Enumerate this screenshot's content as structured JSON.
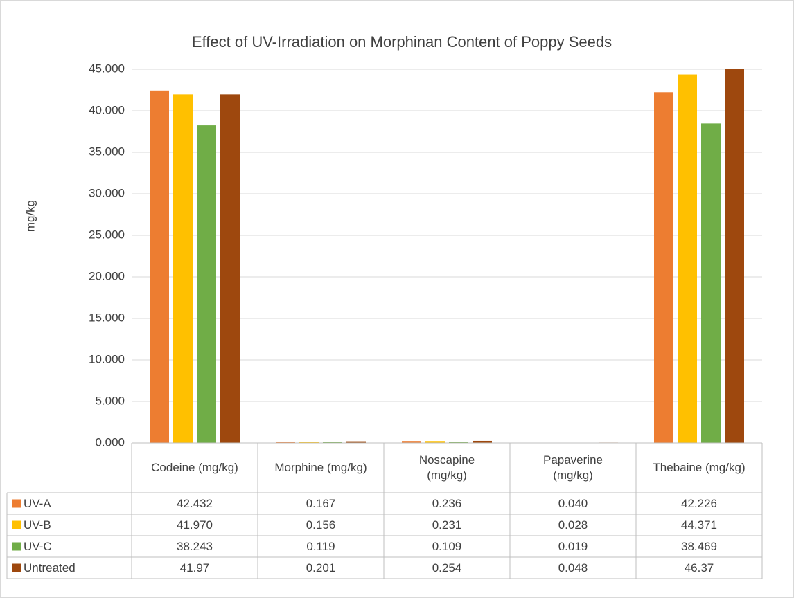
{
  "chart_data": {
    "type": "bar",
    "title": "Effect of UV-Irradiation on Morphinan Content of Poppy Seeds",
    "y_label": "mg/kg",
    "categories": [
      "Codeine (mg/kg)",
      "Morphine (mg/kg)",
      "Noscapine (mg/kg)",
      "Papaverine (mg/kg)",
      "Thebaine (mg/kg)"
    ],
    "series": [
      {
        "name": "UV-A",
        "color": "#ED7D31",
        "values": [
          42.432,
          0.167,
          0.236,
          0.04,
          42.226
        ],
        "value_labels": [
          "42.432",
          "0.167",
          "0.236",
          "0.040",
          "42.226"
        ]
      },
      {
        "name": "UV-B",
        "color": "#FFC000",
        "values": [
          41.97,
          0.156,
          0.231,
          0.028,
          44.371
        ],
        "value_labels": [
          "41.970",
          "0.156",
          "0.231",
          "0.028",
          "44.371"
        ]
      },
      {
        "name": "UV-C",
        "color": "#70AD47",
        "values": [
          38.243,
          0.119,
          0.109,
          0.019,
          38.469
        ],
        "value_labels": [
          "38.243",
          "0.119",
          "0.109",
          "0.019",
          "38.469"
        ]
      },
      {
        "name": "Untreated",
        "color": "#9E480E",
        "values": [
          41.97,
          0.201,
          0.254,
          0.048,
          46.37
        ],
        "value_labels": [
          "41.97",
          "0.201",
          "0.254",
          "0.048",
          "46.37"
        ]
      }
    ],
    "ylim": [
      0,
      45
    ],
    "yticks": [
      {
        "value": 0,
        "label": "0.000"
      },
      {
        "value": 5,
        "label": "5.000"
      },
      {
        "value": 10,
        "label": "10.000"
      },
      {
        "value": 15,
        "label": "15.000"
      },
      {
        "value": 20,
        "label": "20.000"
      },
      {
        "value": 25,
        "label": "25.000"
      },
      {
        "value": 30,
        "label": "30.000"
      },
      {
        "value": 35,
        "label": "35.000"
      },
      {
        "value": 40,
        "label": "40.000"
      },
      {
        "value": 45,
        "label": "45.000"
      }
    ],
    "grid": true,
    "legend": "table"
  }
}
